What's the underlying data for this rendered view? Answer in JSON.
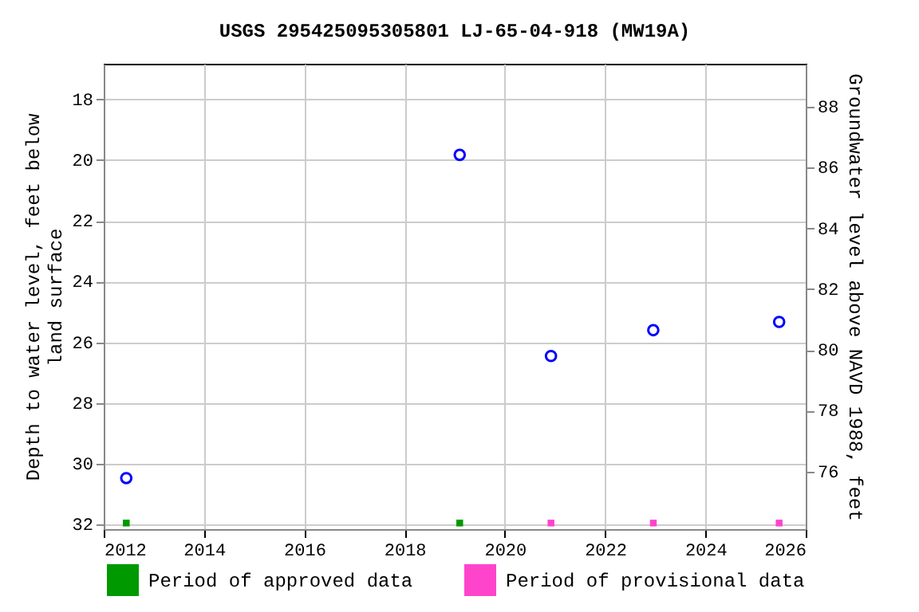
{
  "chart_data": {
    "type": "scatter",
    "title": "USGS 295425095305801 LJ-65-04-918 (MW19A)",
    "ylabel": "Depth to water level, feet below land surface",
    "y2label": "Groundwater level above NAVD 1988, feet",
    "xlim": [
      2012,
      2026
    ],
    "xticks": [
      2012,
      2014,
      2016,
      2018,
      2020,
      2022,
      2024,
      2026
    ],
    "ylim": [
      32.15,
      16.83
    ],
    "yticks": [
      18,
      20,
      22,
      24,
      26,
      28,
      30,
      32
    ],
    "y2lim": [
      74.1,
      89.42
    ],
    "y2ticks": [
      76,
      78,
      80,
      82,
      84,
      86,
      88
    ],
    "grid": true,
    "legend": "bottom",
    "series": [
      {
        "color": "#0000ff",
        "marker": "circle",
        "x": [
          2012.45,
          2019.1,
          2020.92,
          2022.96,
          2025.47
        ],
        "values": [
          30.47,
          19.83,
          26.45,
          25.6,
          25.33
        ]
      },
      {
        "name": "Period of approved data",
        "color": "#009900",
        "marker": "square",
        "x": [
          2012.45,
          2019.1
        ],
        "values": [
          31.95,
          31.95
        ]
      },
      {
        "name": "Period of provisional data",
        "color": "#ff44cc",
        "marker": "square",
        "x": [
          2020.92,
          2022.96,
          2025.47
        ],
        "values": [
          31.95,
          31.95,
          31.95
        ]
      }
    ]
  }
}
